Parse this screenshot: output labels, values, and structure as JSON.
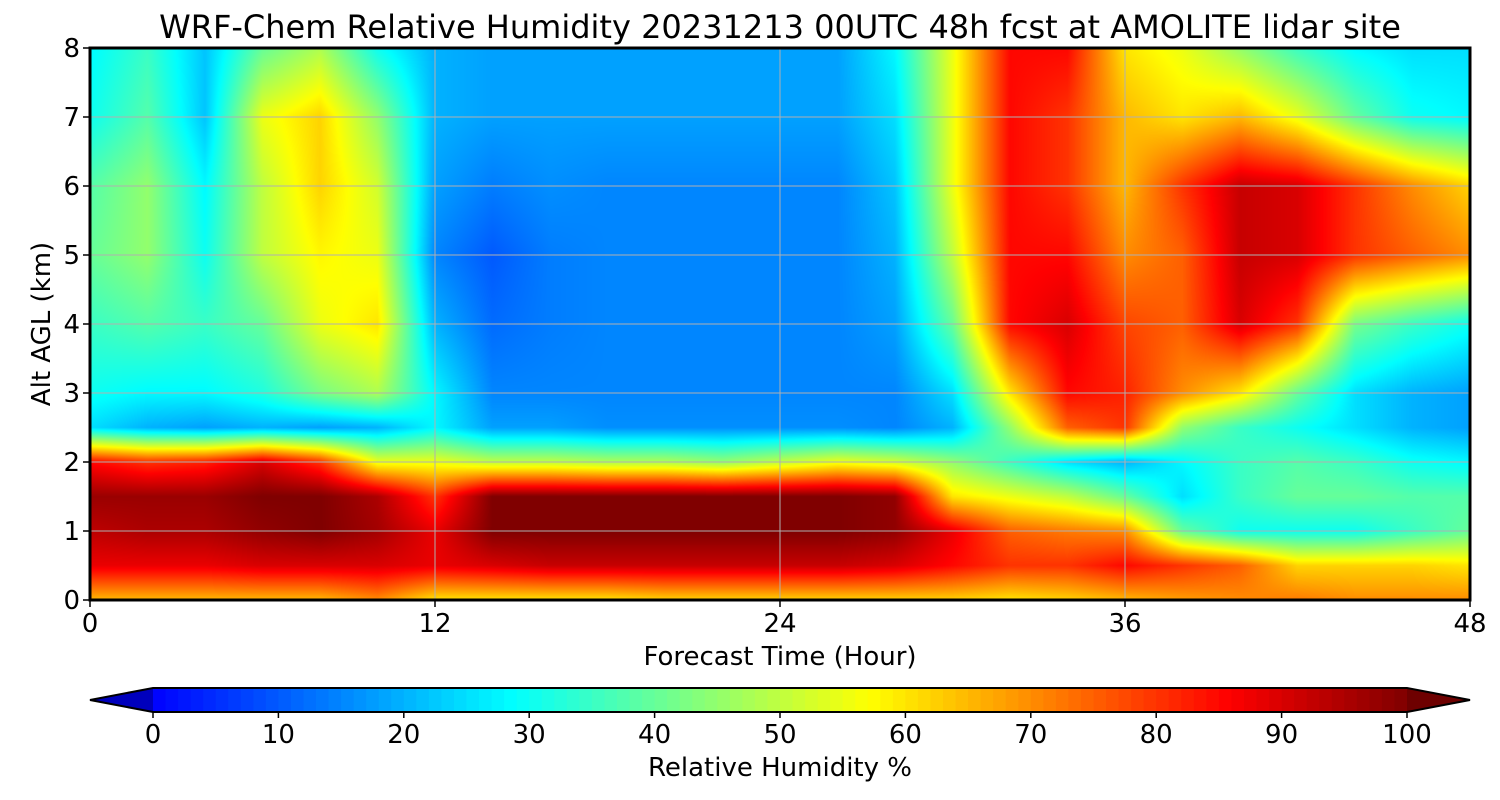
{
  "chart_data": {
    "type": "heatmap",
    "title": "WRF-Chem Relative Humidity 20231213 00UTC 48h fcst at AMOLITE lidar site",
    "xlabel": "Forecast Time (Hour)",
    "ylabel": "Alt AGL (km)",
    "xlim": [
      0,
      48
    ],
    "ylim": [
      0,
      8
    ],
    "x_ticks": [
      "0",
      "12",
      "24",
      "36",
      "48"
    ],
    "y_ticks": [
      "0",
      "1",
      "2",
      "3",
      "4",
      "5",
      "6",
      "7",
      "8"
    ],
    "grid": true,
    "colormap": "jet",
    "colorbar": {
      "label": "Relative Humidity %",
      "range": [
        0,
        100
      ],
      "ticks": [
        "0",
        "10",
        "20",
        "30",
        "40",
        "50",
        "60",
        "70",
        "80",
        "90",
        "100"
      ],
      "extend": "both",
      "orientation": "horizontal",
      "placement": "bottom"
    },
    "grid_x_hours": [
      0,
      2,
      4,
      6,
      8,
      10,
      12,
      14,
      16,
      18,
      20,
      22,
      24,
      26,
      28,
      30,
      32,
      34,
      36,
      38,
      40,
      42,
      44,
      46,
      48
    ],
    "grid_alt_km": [
      0,
      0.5,
      1,
      1.5,
      2,
      2.5,
      3,
      4,
      5,
      6,
      7,
      8
    ],
    "rh_values": [
      [
        65,
        65,
        65,
        65,
        65,
        70,
        60,
        60,
        60,
        60,
        62,
        62,
        62,
        62,
        62,
        62,
        60,
        62,
        65,
        68,
        70,
        72,
        70,
        70,
        70
      ],
      [
        88,
        88,
        88,
        90,
        90,
        90,
        88,
        90,
        92,
        92,
        92,
        92,
        92,
        92,
        90,
        85,
        80,
        80,
        85,
        80,
        75,
        62,
        62,
        62,
        60
      ],
      [
        93,
        95,
        95,
        98,
        100,
        96,
        88,
        100,
        100,
        100,
        100,
        100,
        100,
        100,
        98,
        88,
        75,
        72,
        70,
        40,
        30,
        30,
        30,
        35,
        40
      ],
      [
        97,
        97,
        97,
        100,
        100,
        95,
        80,
        100,
        100,
        100,
        100,
        100,
        100,
        100,
        98,
        60,
        55,
        50,
        40,
        25,
        35,
        40,
        40,
        38,
        38
      ],
      [
        85,
        80,
        82,
        90,
        80,
        55,
        55,
        50,
        50,
        48,
        48,
        45,
        50,
        55,
        52,
        45,
        35,
        25,
        20,
        28,
        35,
        38,
        35,
        30,
        28
      ],
      [
        25,
        20,
        18,
        20,
        18,
        20,
        28,
        18,
        18,
        16,
        16,
        16,
        16,
        16,
        15,
        20,
        45,
        75,
        80,
        45,
        35,
        30,
        25,
        20,
        18
      ],
      [
        30,
        28,
        28,
        32,
        42,
        48,
        28,
        15,
        15,
        15,
        15,
        15,
        15,
        15,
        15,
        25,
        60,
        85,
        82,
        70,
        60,
        40,
        25,
        20,
        18
      ],
      [
        35,
        38,
        35,
        40,
        55,
        60,
        20,
        12,
        14,
        15,
        15,
        15,
        15,
        15,
        18,
        40,
        85,
        90,
        78,
        75,
        90,
        80,
        42,
        35,
        30
      ],
      [
        40,
        45,
        30,
        50,
        58,
        55,
        15,
        10,
        14,
        15,
        15,
        15,
        15,
        15,
        20,
        50,
        85,
        85,
        70,
        75,
        92,
        90,
        80,
        75,
        70
      ],
      [
        38,
        45,
        28,
        50,
        62,
        52,
        18,
        14,
        16,
        15,
        15,
        15,
        15,
        15,
        22,
        55,
        85,
        80,
        65,
        80,
        92,
        90,
        80,
        70,
        62
      ],
      [
        30,
        38,
        22,
        55,
        62,
        45,
        20,
        18,
        18,
        18,
        18,
        18,
        18,
        18,
        25,
        55,
        85,
        80,
        65,
        60,
        65,
        55,
        40,
        30,
        28
      ],
      [
        28,
        35,
        22,
        40,
        48,
        30,
        20,
        18,
        18,
        18,
        18,
        18,
        18,
        18,
        28,
        55,
        85,
        85,
        60,
        55,
        45,
        35,
        28,
        25,
        25
      ]
    ]
  }
}
